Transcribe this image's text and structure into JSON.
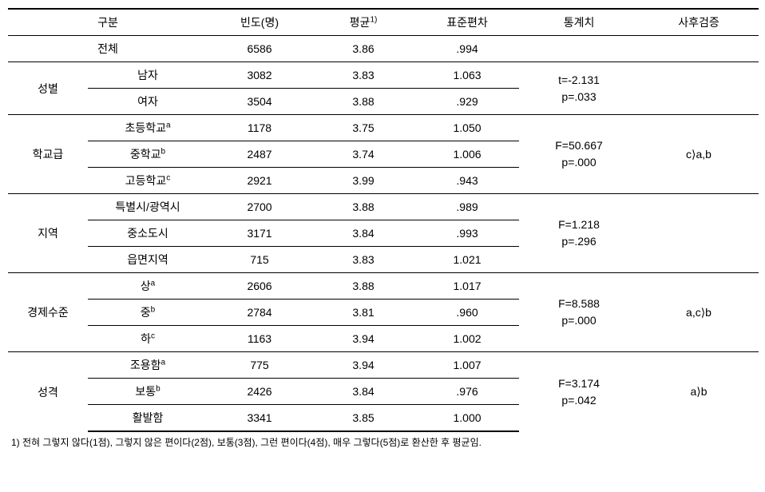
{
  "header": {
    "category": "구분",
    "frequency": "빈도(명)",
    "mean": "평균",
    "mean_sup": "1)",
    "sd": "표준편차",
    "stat": "통계치",
    "posthoc": "사후검증"
  },
  "total": {
    "label": "전체",
    "freq": "6586",
    "mean": "3.86",
    "sd": ".994"
  },
  "groups": [
    {
      "label": "성별",
      "rows": [
        {
          "sub": "남자",
          "freq": "3082",
          "mean": "3.83",
          "sd": "1.063"
        },
        {
          "sub": "여자",
          "freq": "3504",
          "mean": "3.88",
          "sd": ".929"
        }
      ],
      "stat_line1": "t=-2.131",
      "stat_line2": "p=.033",
      "posthoc": ""
    },
    {
      "label": "학교급",
      "rows": [
        {
          "sub": "초등학교",
          "sup": "a",
          "freq": "1178",
          "mean": "3.75",
          "sd": "1.050"
        },
        {
          "sub": "중학교",
          "sup": "b",
          "freq": "2487",
          "mean": "3.74",
          "sd": "1.006"
        },
        {
          "sub": "고등학교",
          "sup": "c",
          "freq": "2921",
          "mean": "3.99",
          "sd": ".943"
        }
      ],
      "stat_line1": "F=50.667",
      "stat_line2": "p=.000",
      "posthoc": "c⟩a,b"
    },
    {
      "label": "지역",
      "rows": [
        {
          "sub": "특별시/광역시",
          "freq": "2700",
          "mean": "3.88",
          "sd": ".989"
        },
        {
          "sub": "중소도시",
          "freq": "3171",
          "mean": "3.84",
          "sd": ".993"
        },
        {
          "sub": "읍면지역",
          "freq": "715",
          "mean": "3.83",
          "sd": "1.021"
        }
      ],
      "stat_line1": "F=1.218",
      "stat_line2": "p=.296",
      "posthoc": ""
    },
    {
      "label": "경제수준",
      "rows": [
        {
          "sub": "상",
          "sup": "a",
          "freq": "2606",
          "mean": "3.88",
          "sd": "1.017"
        },
        {
          "sub": "중",
          "sup": "b",
          "freq": "2784",
          "mean": "3.81",
          "sd": ".960"
        },
        {
          "sub": "하",
          "sup": "c",
          "freq": "1163",
          "mean": "3.94",
          "sd": "1.002"
        }
      ],
      "stat_line1": "F=8.588",
      "stat_line2": "p=.000",
      "posthoc": "a,c⟩b"
    },
    {
      "label": "성격",
      "rows": [
        {
          "sub": "조용함",
          "sup": "a",
          "freq": "775",
          "mean": "3.94",
          "sd": "1.007"
        },
        {
          "sub": "보통",
          "sup": "b",
          "freq": "2426",
          "mean": "3.84",
          "sd": ".976"
        },
        {
          "sub": "활발함",
          "freq": "3341",
          "mean": "3.85",
          "sd": "1.000"
        }
      ],
      "stat_line1": "F=3.174",
      "stat_line2": "p=.042",
      "posthoc": "a⟩b"
    }
  ],
  "footnote": "1) 전혀 그렇지 않다(1점), 그렇지 않은 편이다(2점), 보통(3점), 그런 편이다(4점), 매우 그렇다(5점)로 환산한 후 평균임."
}
